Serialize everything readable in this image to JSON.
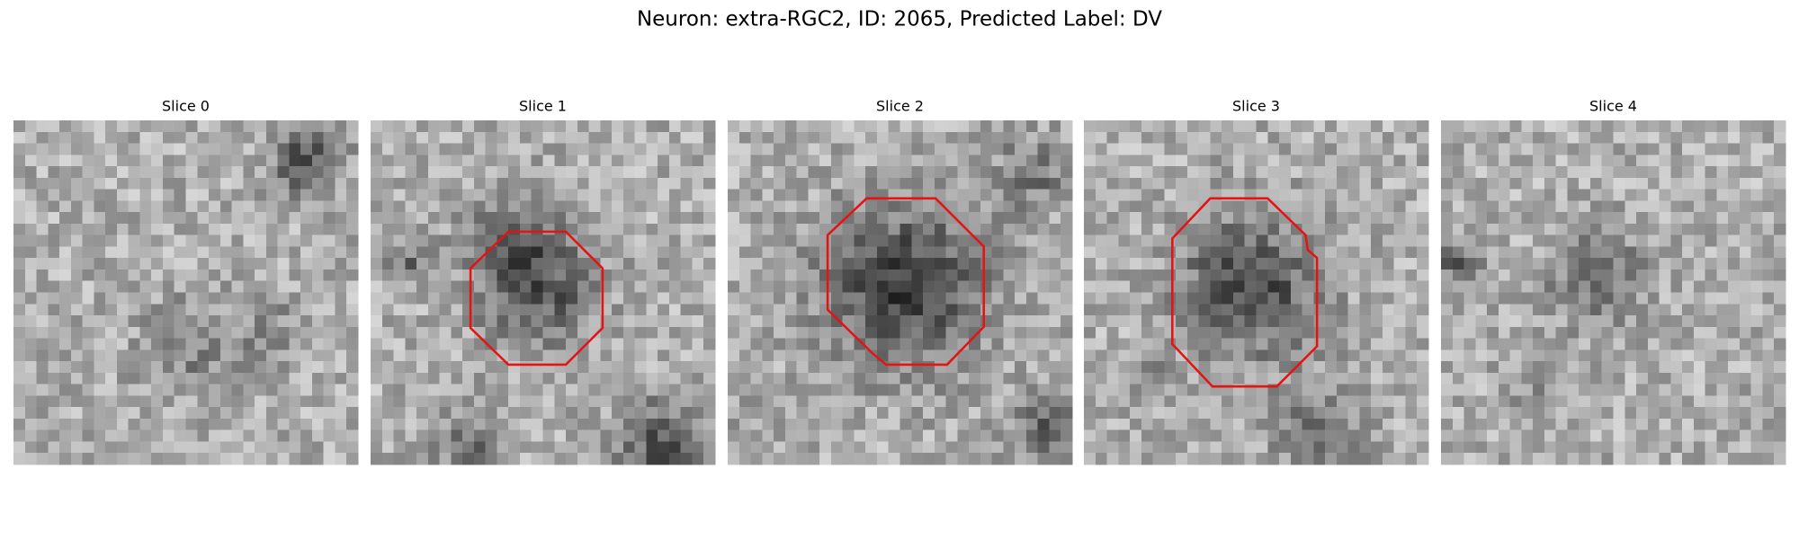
{
  "title": "Neuron: extra-RGC2, ID: 2065, Predicted Label: DV",
  "panels": [
    {
      "title": "Slice 0"
    },
    {
      "title": "Slice 1"
    },
    {
      "title": "Slice 2"
    },
    {
      "title": "Slice 3"
    },
    {
      "title": "Slice 4"
    }
  ]
}
